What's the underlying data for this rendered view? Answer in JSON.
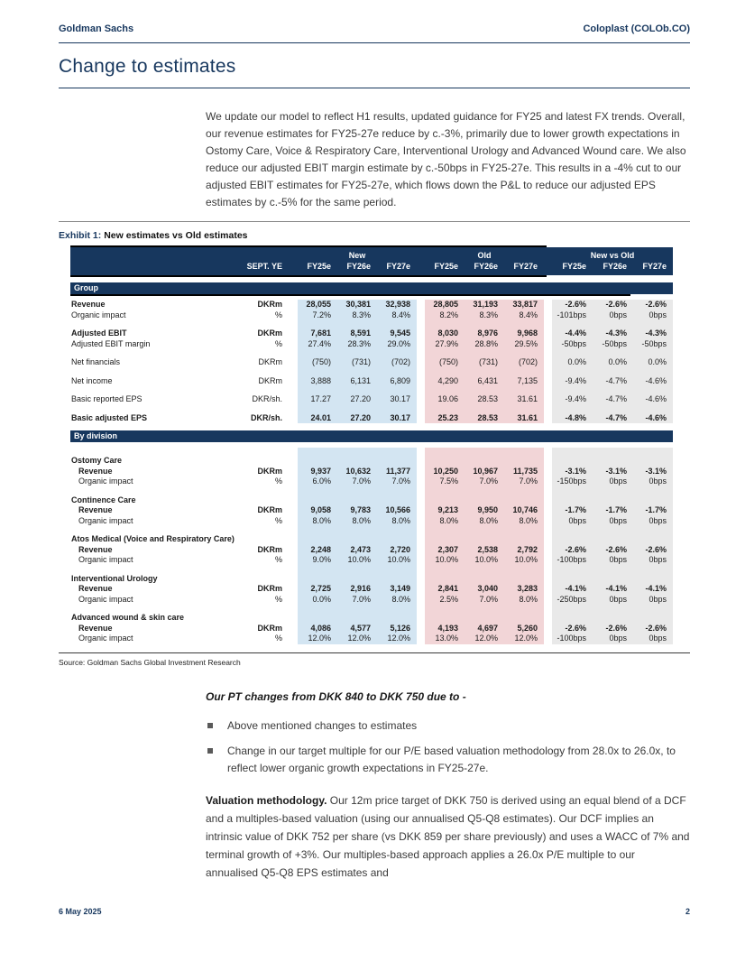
{
  "header": {
    "brand": "Goldman Sachs",
    "doc_ref": "Coloplast (COLOb.CO)"
  },
  "page_title": "Change to estimates",
  "intro": "We update our model to reflect H1 results, updated guidance for FY25 and latest FX trends. Overall, our revenue estimates for FY25-27e reduce by c.-3%, primarily due to lower growth expectations in Ostomy Care, Voice & Respiratory Care, Interventional Urology and Advanced Wound care. We also reduce our adjusted EBIT margin estimate by c.-50bps in FY25-27e. This results in a -4% cut to our adjusted EBIT estimates for FY25-27e, which flows down the P&L to reduce our adjusted EPS estimates by c.-5% for the same period.",
  "exhibit": {
    "title_prefix": "Exhibit 1:",
    "title_rest": "New estimates vs Old estimates",
    "sept_ye": "SEPT. YE",
    "col_groups": [
      "New",
      "Old",
      "New vs Old"
    ],
    "years": [
      "FY25e",
      "FY26e",
      "FY27e"
    ],
    "sections": [
      {
        "band": "Group",
        "rows": [
          {
            "label": "Revenue",
            "unit": "DKRm",
            "bold": true,
            "new": [
              "28,055",
              "30,381",
              "32,938"
            ],
            "old": [
              "28,805",
              "31,193",
              "33,817"
            ],
            "diff": [
              "-2.6%",
              "-2.6%",
              "-2.6%"
            ]
          },
          {
            "label": "Organic impact",
            "unit": "%",
            "new": [
              "7.2%",
              "8.3%",
              "8.4%"
            ],
            "old": [
              "8.2%",
              "8.3%",
              "8.4%"
            ],
            "diff": [
              "-101bps",
              "0bps",
              "0bps"
            ]
          },
          {
            "type": "spacer"
          },
          {
            "label": "Adjusted EBIT",
            "unit": "DKRm",
            "bold": true,
            "new": [
              "7,681",
              "8,591",
              "9,545"
            ],
            "old": [
              "8,030",
              "8,976",
              "9,968"
            ],
            "diff": [
              "-4.4%",
              "-4.3%",
              "-4.3%"
            ]
          },
          {
            "label": "Adjusted EBIT margin",
            "unit": "%",
            "new": [
              "27.4%",
              "28.3%",
              "29.0%"
            ],
            "old": [
              "27.9%",
              "28.8%",
              "29.5%"
            ],
            "diff": [
              "-50bps",
              "-50bps",
              "-50bps"
            ]
          },
          {
            "type": "spacer"
          },
          {
            "label": "Net financials",
            "unit": "DKRm",
            "new": [
              "(750)",
              "(731)",
              "(702)"
            ],
            "old": [
              "(750)",
              "(731)",
              "(702)"
            ],
            "diff": [
              "0.0%",
              "0.0%",
              "0.0%"
            ]
          },
          {
            "type": "spacer"
          },
          {
            "label": "Net income",
            "unit": "DKRm",
            "new": [
              "3,888",
              "6,131",
              "6,809"
            ],
            "old": [
              "4,290",
              "6,431",
              "7,135"
            ],
            "diff": [
              "-9.4%",
              "-4.7%",
              "-4.6%"
            ]
          },
          {
            "type": "spacer"
          },
          {
            "label": "Basic reported EPS",
            "unit": "DKR/sh.",
            "new": [
              "17.27",
              "27.20",
              "30.17"
            ],
            "old": [
              "19.06",
              "28.53",
              "31.61"
            ],
            "diff": [
              "-9.4%",
              "-4.7%",
              "-4.6%"
            ]
          },
          {
            "type": "spacer"
          },
          {
            "label": "Basic adjusted EPS",
            "unit": "DKR/sh.",
            "bold": true,
            "new": [
              "24.01",
              "27.20",
              "30.17"
            ],
            "old": [
              "25.23",
              "28.53",
              "31.61"
            ],
            "diff": [
              "-4.8%",
              "-4.7%",
              "-4.6%"
            ]
          }
        ]
      },
      {
        "band": "By division",
        "rows": [
          {
            "type": "spacer"
          },
          {
            "type": "divhead",
            "label": "Ostomy Care"
          },
          {
            "label": "Revenue",
            "unit": "DKRm",
            "bold": true,
            "indent": 1,
            "new": [
              "9,937",
              "10,632",
              "11,377"
            ],
            "old": [
              "10,250",
              "10,967",
              "11,735"
            ],
            "diff": [
              "-3.1%",
              "-3.1%",
              "-3.1%"
            ]
          },
          {
            "label": "Organic impact",
            "unit": "%",
            "indent": 1,
            "new": [
              "6.0%",
              "7.0%",
              "7.0%"
            ],
            "old": [
              "7.5%",
              "7.0%",
              "7.0%"
            ],
            "diff": [
              "-150bps",
              "0bps",
              "0bps"
            ]
          },
          {
            "type": "spacer"
          },
          {
            "type": "divhead",
            "label": "Continence Care"
          },
          {
            "label": "Revenue",
            "unit": "DKRm",
            "bold": true,
            "indent": 1,
            "new": [
              "9,058",
              "9,783",
              "10,566"
            ],
            "old": [
              "9,213",
              "9,950",
              "10,746"
            ],
            "diff": [
              "-1.7%",
              "-1.7%",
              "-1.7%"
            ]
          },
          {
            "label": "Organic impact",
            "unit": "%",
            "indent": 1,
            "new": [
              "8.0%",
              "8.0%",
              "8.0%"
            ],
            "old": [
              "8.0%",
              "8.0%",
              "8.0%"
            ],
            "diff": [
              "0bps",
              "0bps",
              "0bps"
            ]
          },
          {
            "type": "spacer"
          },
          {
            "type": "divhead",
            "label": "Atos Medical (Voice and Respiratory Care)"
          },
          {
            "label": "Revenue",
            "unit": "DKRm",
            "bold": true,
            "indent": 1,
            "new": [
              "2,248",
              "2,473",
              "2,720"
            ],
            "old": [
              "2,307",
              "2,538",
              "2,792"
            ],
            "diff": [
              "-2.6%",
              "-2.6%",
              "-2.6%"
            ]
          },
          {
            "label": "Organic impact",
            "unit": "%",
            "indent": 1,
            "new": [
              "9.0%",
              "10.0%",
              "10.0%"
            ],
            "old": [
              "10.0%",
              "10.0%",
              "10.0%"
            ],
            "diff": [
              "-100bps",
              "0bps",
              "0bps"
            ]
          },
          {
            "type": "spacer"
          },
          {
            "type": "divhead",
            "label": "Interventional Urology"
          },
          {
            "label": "Revenue",
            "unit": "DKRm",
            "bold": true,
            "indent": 1,
            "new": [
              "2,725",
              "2,916",
              "3,149"
            ],
            "old": [
              "2,841",
              "3,040",
              "3,283"
            ],
            "diff": [
              "-4.1%",
              "-4.1%",
              "-4.1%"
            ]
          },
          {
            "label": "Organic impact",
            "unit": "%",
            "indent": 1,
            "new": [
              "0.0%",
              "7.0%",
              "8.0%"
            ],
            "old": [
              "2.5%",
              "7.0%",
              "8.0%"
            ],
            "diff": [
              "-250bps",
              "0bps",
              "0bps"
            ]
          },
          {
            "type": "spacer"
          },
          {
            "type": "divhead",
            "label": "Advanced wound & skin care"
          },
          {
            "label": "Revenue",
            "unit": "DKRm",
            "bold": true,
            "indent": 1,
            "new": [
              "4,086",
              "4,577",
              "5,126"
            ],
            "old": [
              "4,193",
              "4,697",
              "5,260"
            ],
            "diff": [
              "-2.6%",
              "-2.6%",
              "-2.6%"
            ]
          },
          {
            "label": "Organic impact",
            "unit": "%",
            "indent": 1,
            "new": [
              "12.0%",
              "12.0%",
              "12.0%"
            ],
            "old": [
              "13.0%",
              "12.0%",
              "12.0%"
            ],
            "diff": [
              "-100bps",
              "0bps",
              "0bps"
            ]
          }
        ]
      }
    ],
    "source": "Source: Goldman Sachs Global Investment Research"
  },
  "pt": {
    "heading": "Our PT changes from DKK 840 to DKK 750 due to -",
    "bullets": [
      "Above mentioned changes to estimates",
      "Change in our target multiple for our P/E based valuation methodology from 28.0x to 26.0x, to reflect lower organic growth expectations in FY25-27e."
    ]
  },
  "valuation": {
    "lead": "Valuation methodology.",
    "text": "Our 12m price target of DKK 750 is derived using an equal blend of a DCF and a multiples-based valuation (using our annualised Q5-Q8 estimates). Our DCF implies an intrinsic value of DKK 752 per share (vs DKK 859 per share previously) and uses a WACC of 7% and terminal growth of +3%. Our multiples-based approach applies a 26.0x P/E multiple to our annualised Q5-Q8 EPS estimates and"
  },
  "footer": {
    "date": "6 May 2025",
    "page": "2"
  },
  "colors": {
    "navy": "#17375e",
    "new_bg": "#d3e5f2",
    "old_bg": "#f2d5d7",
    "diff_bg": "#e9e9e9"
  }
}
